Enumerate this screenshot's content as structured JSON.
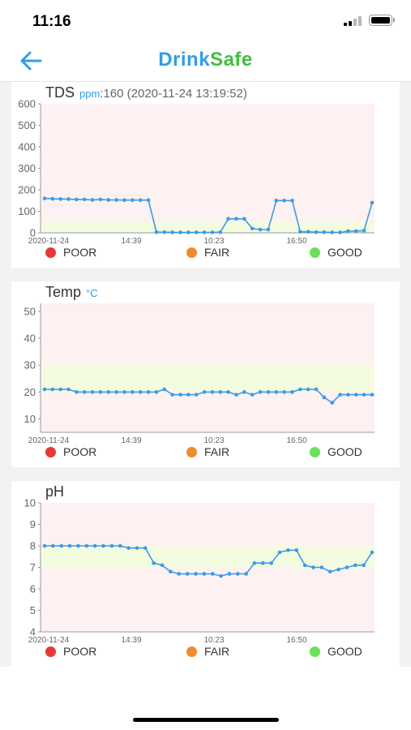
{
  "status_bar": {
    "time": "11:16"
  },
  "header": {
    "logo_part1": "Drink",
    "logo_part2": "Safe"
  },
  "colors": {
    "poor": "#e53935",
    "fair": "#ef8a2f",
    "good": "#6be05a",
    "line": "#3a9be8",
    "poor_band": "#fdf1f1",
    "good_band": "#f4fce0"
  },
  "legend": {
    "poor": "POOR",
    "fair": "FAIR",
    "good": "GOOD"
  },
  "charts": [
    {
      "id": "tds",
      "title": "TDS",
      "unit": "ppm",
      "reading": ":160 (2020-11-24 13:19:52)",
      "chart_data": {
        "type": "line",
        "ylim": [
          0,
          600
        ],
        "yticks": [
          0,
          100,
          200,
          300,
          400,
          500,
          600
        ],
        "xticks": [
          "2020-11-24",
          "14:39",
          "10:23",
          "16:50"
        ],
        "good_range": [
          0,
          50
        ],
        "values": [
          160,
          158,
          157,
          157,
          155,
          155,
          153,
          155,
          153,
          153,
          152,
          152,
          152,
          152,
          3,
          3,
          2,
          2,
          2,
          2,
          2,
          2,
          3,
          65,
          65,
          65,
          20,
          15,
          15,
          150,
          150,
          150,
          5,
          5,
          3,
          3,
          2,
          2,
          8,
          8,
          10,
          140
        ]
      }
    },
    {
      "id": "temp",
      "title": "Temp",
      "unit": "°C",
      "reading": "",
      "chart_data": {
        "type": "line",
        "ylim": [
          5,
          53
        ],
        "yticks": [
          10,
          20,
          30,
          40,
          50
        ],
        "xticks": [
          "2020-11-24",
          "14:39",
          "10:23",
          "16:50"
        ],
        "good_range": [
          20,
          30
        ],
        "values": [
          21,
          21,
          21,
          21,
          20,
          20,
          20,
          20,
          20,
          20,
          20,
          20,
          20,
          20,
          20,
          21,
          19,
          19,
          19,
          19,
          20,
          20,
          20,
          20,
          19,
          20,
          19,
          20,
          20,
          20,
          20,
          20,
          21,
          21,
          21,
          18,
          16,
          19,
          19,
          19,
          19,
          19
        ]
      }
    },
    {
      "id": "ph",
      "title": "pH",
      "unit": "",
      "reading": "",
      "chart_data": {
        "type": "line",
        "ylim": [
          4,
          10
        ],
        "yticks": [
          4,
          5,
          6,
          7,
          8,
          9,
          10
        ],
        "xticks": [
          "2020-11-24",
          "14:39",
          "10:23",
          "16:50"
        ],
        "good_range": [
          7,
          8
        ],
        "values": [
          8,
          8,
          8,
          8,
          8,
          8,
          8,
          8,
          8,
          8,
          7.9,
          7.9,
          7.9,
          7.2,
          7.1,
          6.8,
          6.7,
          6.7,
          6.7,
          6.7,
          6.7,
          6.6,
          6.7,
          6.7,
          6.7,
          7.2,
          7.2,
          7.2,
          7.7,
          7.8,
          7.8,
          7.1,
          7,
          7,
          6.8,
          6.9,
          7,
          7.1,
          7.1,
          7.7
        ]
      }
    }
  ]
}
